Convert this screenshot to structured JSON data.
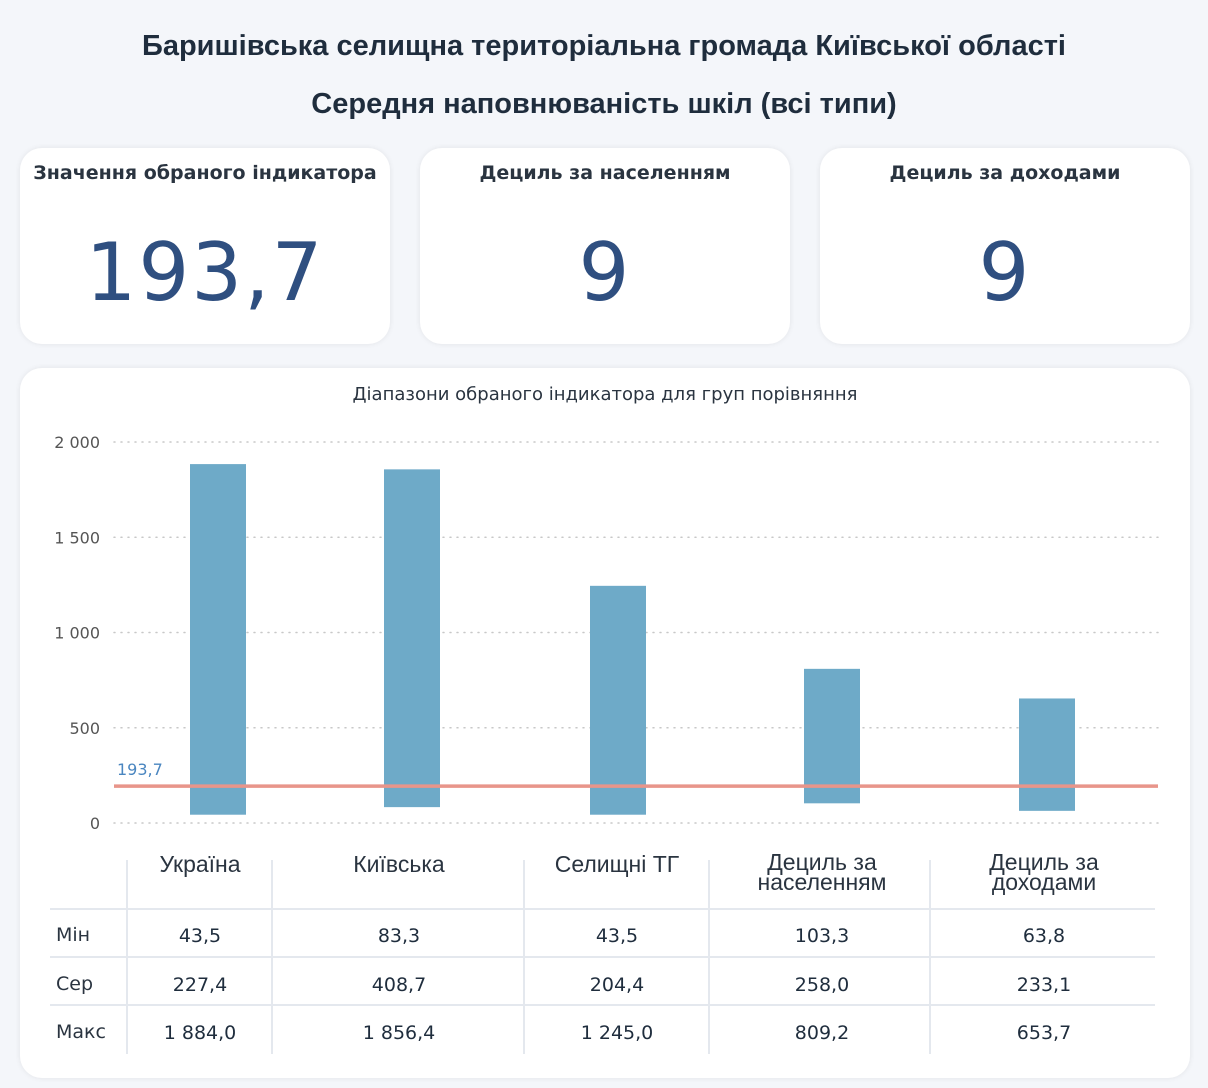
{
  "header": {
    "title": "Баришівська селищна територіальна громада Київської області",
    "subtitle": "Середня наповнюваність шкіл (всі типи)"
  },
  "kpis": [
    {
      "label": "Значення обраного індикатора",
      "value": "193,7"
    },
    {
      "label": "Дециль за населенням",
      "value": "9"
    },
    {
      "label": "Дециль за доходами",
      "value": "9"
    }
  ],
  "chart_data": {
    "type": "bar",
    "title": "Діапазони обраного індикатора для груп порівняння",
    "categories": [
      "Україна",
      "Київська",
      "Селищні ТГ",
      "Дециль за населенням",
      "Дециль за доходами"
    ],
    "series": [
      {
        "name": "Мін",
        "values": [
          43.5,
          83.3,
          43.5,
          103.3,
          63.8
        ]
      },
      {
        "name": "Сер",
        "values": [
          227.4,
          408.7,
          204.4,
          258.0,
          233.1
        ]
      },
      {
        "name": "Макс",
        "values": [
          1884.0,
          1856.4,
          1245.0,
          809.2,
          653.7
        ]
      }
    ],
    "reference_line": {
      "value": 193.7,
      "label": "193,7",
      "color": "#e8958a"
    },
    "ylim": [
      0,
      2000
    ],
    "yticks": [
      0,
      500,
      1000,
      1500,
      2000
    ],
    "ytick_labels": [
      "0",
      "500",
      "1 000",
      "1 500",
      "2 000"
    ],
    "bar_color": "#6eaac8",
    "grid": true
  },
  "table": {
    "columns": [
      "Україна",
      "Київська",
      "Селищні ТГ",
      "Дециль за\nнаселенням",
      "Дециль за\nдоходами"
    ],
    "rows": [
      {
        "label": "Мін",
        "cells": [
          "43,5",
          "83,3",
          "43,5",
          "103,3",
          "63,8"
        ]
      },
      {
        "label": "Сер",
        "cells": [
          "227,4",
          "408,7",
          "204,4",
          "258,0",
          "233,1"
        ]
      },
      {
        "label": "Макс",
        "cells": [
          "1 884,0",
          "1 856,4",
          "1 245,0",
          "809,2",
          "653,7"
        ]
      }
    ]
  }
}
